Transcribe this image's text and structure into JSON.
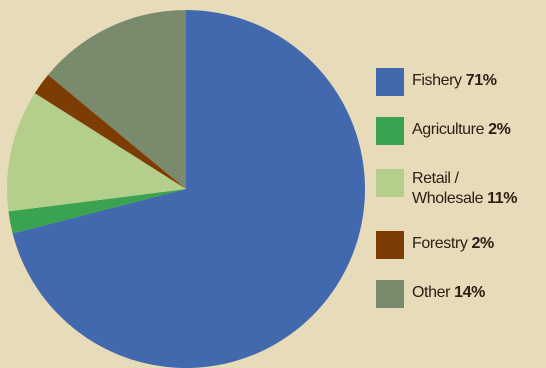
{
  "chart_data": {
    "type": "pie",
    "slices": [
      {
        "label": "Fishery",
        "value": 71,
        "pct_label": "71%",
        "color": "#4268ad"
      },
      {
        "label": "Agriculture",
        "value": 2,
        "pct_label": "2%",
        "color": "#3aa350"
      },
      {
        "label": "Retail / Wholesale",
        "label_lines": [
          "Retail /",
          "Wholesale"
        ],
        "value": 11,
        "pct_label": "11%",
        "color": "#b3cf8b"
      },
      {
        "label": "Forestry",
        "value": 2,
        "pct_label": "2%",
        "color": "#7c3c04"
      },
      {
        "label": "Other",
        "value": 14,
        "pct_label": "14%",
        "color": "#7a8a6c"
      }
    ],
    "start_angle_deg": 0,
    "direction": "clockwise",
    "legend_position": "right"
  }
}
